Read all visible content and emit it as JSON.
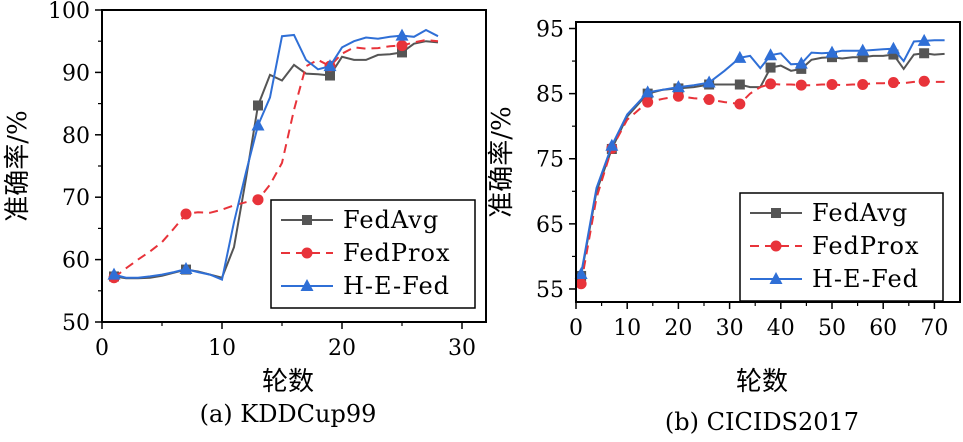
{
  "charts": [
    {
      "caption": "(a) KDDCup99",
      "xlabel": "轮数",
      "ylabel": "准确率/%",
      "type": "line",
      "xlim": [
        0,
        32
      ],
      "ylim": [
        50,
        100
      ],
      "xticks": [
        0,
        10,
        20,
        30
      ],
      "yticks": [
        50,
        60,
        70,
        80,
        90,
        100
      ],
      "legend_position": "bottom-right",
      "series": [
        {
          "name": "FedAvg",
          "color": "#555555",
          "dash": "solid",
          "marker": "square",
          "x": [
            1,
            2,
            3,
            4,
            5,
            6,
            7,
            8,
            9,
            10,
            11,
            12,
            13,
            14,
            15,
            16,
            17,
            18,
            19,
            20,
            21,
            22,
            23,
            24,
            25,
            26,
            27,
            28
          ],
          "y": [
            57.3,
            57.0,
            57.0,
            57.1,
            57.4,
            57.9,
            58.4,
            58.1,
            57.6,
            57.1,
            62.0,
            73.0,
            84.7,
            89.6,
            88.7,
            91.2,
            89.8,
            89.7,
            89.5,
            92.5,
            92.0,
            92.0,
            92.8,
            92.9,
            93.2,
            94.6,
            95.0,
            94.8
          ],
          "markers_at": [
            1,
            7,
            13,
            19,
            25
          ]
        },
        {
          "name": "FedProx",
          "color": "#e8333a",
          "dash": "dashed",
          "marker": "circle",
          "x": [
            1,
            2,
            3,
            4,
            5,
            6,
            7,
            8,
            9,
            10,
            11,
            12,
            13,
            14,
            15,
            16,
            17,
            18,
            19,
            20,
            21,
            22,
            23,
            24,
            25,
            26,
            27,
            28
          ],
          "y": [
            57.1,
            58.6,
            60.0,
            61.3,
            62.8,
            65.0,
            67.3,
            67.6,
            67.5,
            68.0,
            68.7,
            69.2,
            69.6,
            72.0,
            75.5,
            84.0,
            91.0,
            92.0,
            91.0,
            93.0,
            94.0,
            93.8,
            93.9,
            94.2,
            94.3,
            94.8,
            95.2,
            95.0
          ],
          "markers_at": [
            1,
            7,
            13,
            19,
            25
          ]
        },
        {
          "name": "H-E-Fed",
          "color": "#2f6fd6",
          "dash": "solid",
          "marker": "triangle",
          "x": [
            1,
            2,
            3,
            4,
            5,
            6,
            7,
            8,
            9,
            10,
            11,
            12,
            13,
            14,
            15,
            16,
            17,
            18,
            19,
            20,
            21,
            22,
            23,
            24,
            25,
            26,
            27,
            28
          ],
          "y": [
            57.6,
            57.1,
            57.1,
            57.3,
            57.6,
            58.0,
            58.5,
            58.0,
            57.6,
            56.8,
            66.0,
            74.0,
            81.5,
            86.0,
            95.8,
            96.0,
            92.0,
            90.5,
            91.0,
            94.0,
            95.0,
            95.6,
            95.4,
            95.7,
            95.9,
            95.7,
            96.8,
            95.8
          ],
          "markers_at": [
            1,
            7,
            13,
            19,
            25
          ]
        }
      ]
    },
    {
      "caption": "(b) CICIDS2017",
      "xlabel": "轮数",
      "ylabel": "准确率/%",
      "type": "line",
      "xlim": [
        0,
        75
      ],
      "ylim": [
        53,
        96
      ],
      "xticks": [
        0,
        10,
        20,
        30,
        40,
        50,
        60,
        70
      ],
      "yticks": [
        55,
        65,
        75,
        85,
        95
      ],
      "legend_position": "bottom-right",
      "series": [
        {
          "name": "FedAvg",
          "color": "#555555",
          "dash": "solid",
          "marker": "square",
          "x": [
            1,
            4,
            7,
            10,
            14,
            17,
            20,
            23,
            26,
            29,
            32,
            34,
            36,
            38,
            40,
            42,
            44,
            46,
            48,
            50,
            52,
            54,
            56,
            58,
            60,
            62,
            64,
            66,
            68,
            70,
            72
          ],
          "y": [
            57.0,
            70.0,
            76.5,
            81.5,
            85.0,
            85.6,
            85.8,
            86.0,
            86.4,
            86.4,
            86.4,
            86.0,
            86.0,
            89.0,
            89.3,
            88.5,
            88.8,
            90.2,
            90.5,
            90.6,
            90.4,
            90.6,
            90.6,
            90.8,
            90.8,
            91.0,
            88.8,
            91.0,
            91.2,
            91.0,
            91.1
          ],
          "markers_at": [
            1,
            7,
            14,
            20,
            26,
            32,
            38,
            44,
            50,
            56,
            62,
            68
          ]
        },
        {
          "name": "FedProx",
          "color": "#e8333a",
          "dash": "dashed",
          "marker": "circle",
          "x": [
            1,
            4,
            7,
            10,
            14,
            17,
            20,
            23,
            26,
            29,
            32,
            34,
            36,
            38,
            40,
            42,
            44,
            46,
            48,
            50,
            52,
            54,
            56,
            58,
            60,
            62,
            64,
            66,
            68,
            70,
            72
          ],
          "y": [
            55.8,
            69.0,
            76.6,
            81.0,
            83.7,
            84.2,
            84.6,
            84.3,
            84.1,
            83.7,
            83.4,
            85.0,
            86.0,
            86.5,
            86.4,
            86.4,
            86.3,
            86.3,
            86.4,
            86.4,
            86.3,
            86.4,
            86.4,
            86.6,
            86.6,
            86.7,
            86.6,
            86.8,
            86.9,
            86.8,
            86.8
          ],
          "markers_at": [
            1,
            7,
            14,
            20,
            26,
            32,
            38,
            44,
            50,
            56,
            62,
            68
          ]
        },
        {
          "name": "H-E-Fed",
          "color": "#2f6fd6",
          "dash": "solid",
          "marker": "triangle",
          "x": [
            1,
            4,
            7,
            10,
            14,
            17,
            20,
            23,
            26,
            29,
            32,
            34,
            36,
            38,
            40,
            42,
            44,
            46,
            48,
            50,
            52,
            54,
            56,
            58,
            60,
            62,
            64,
            66,
            68,
            70,
            72
          ],
          "y": [
            57.3,
            70.5,
            77.0,
            81.8,
            85.2,
            85.6,
            86.0,
            86.3,
            86.7,
            88.5,
            90.5,
            90.8,
            88.9,
            90.9,
            91.2,
            89.5,
            89.6,
            91.3,
            91.2,
            91.3,
            91.6,
            91.6,
            91.6,
            91.7,
            91.8,
            91.9,
            90.0,
            93.0,
            93.1,
            93.2,
            93.2
          ],
          "markers_at": [
            1,
            7,
            14,
            20,
            26,
            32,
            38,
            44,
            50,
            56,
            62,
            68
          ]
        }
      ]
    }
  ]
}
